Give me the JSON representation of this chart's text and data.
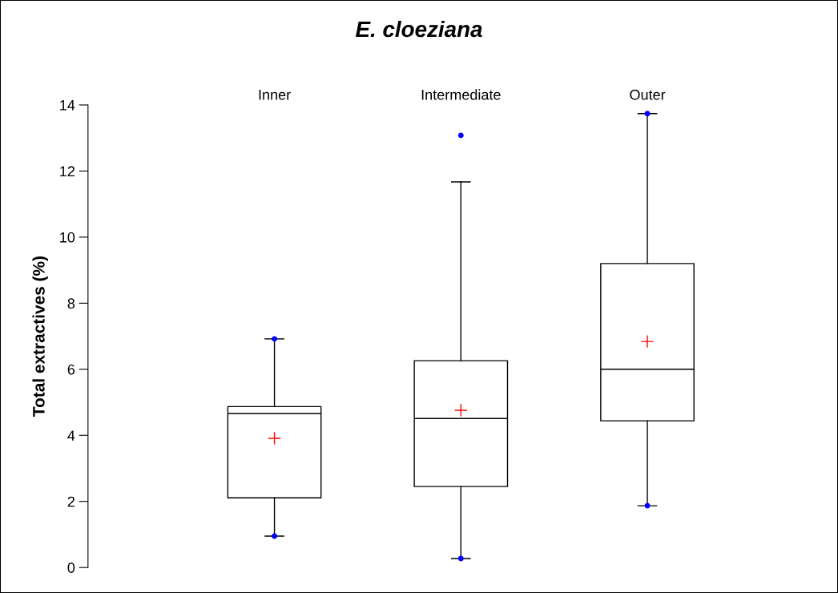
{
  "chart_data": {
    "type": "box",
    "title": "E. cloeziana",
    "ylabel": "Total extractives (%)",
    "categories": [
      "Inner",
      "Intermediate",
      "Outer"
    ],
    "boxes": [
      {
        "low": 0.95,
        "q1": 2.11,
        "median": 4.66,
        "q3": 4.87,
        "high": 6.92,
        "mean": 3.91,
        "outliers": [
          0.95,
          6.92
        ]
      },
      {
        "low": 0.27,
        "q1": 2.45,
        "median": 4.51,
        "q3": 6.26,
        "high": 11.67,
        "mean": 4.76,
        "outliers": [
          0.27,
          13.08
        ]
      },
      {
        "low": 1.87,
        "q1": 4.44,
        "median": 6.0,
        "q3": 9.2,
        "high": 13.74,
        "mean": 6.84,
        "outliers": [
          1.87,
          13.74
        ]
      }
    ],
    "ylim": [
      0,
      14
    ],
    "yticks": [
      0,
      2,
      4,
      6,
      8,
      10,
      12,
      14
    ],
    "grid": false,
    "legend": false
  }
}
